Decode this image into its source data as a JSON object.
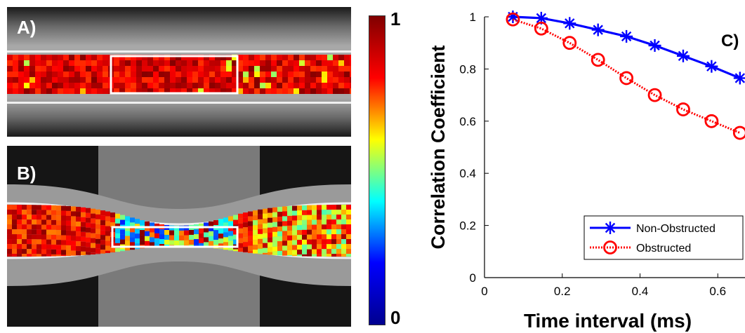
{
  "panels": {
    "a": {
      "label": "A)"
    },
    "b": {
      "label": "B)"
    },
    "c": {
      "label": "C)"
    }
  },
  "colorbar": {
    "max_label": "1",
    "min_label": "0",
    "colors": [
      "#00008f",
      "#0000ff",
      "#00ffff",
      "#ffff00",
      "#ff0000",
      "#800000"
    ]
  },
  "chart_data": {
    "type": "line",
    "title": "",
    "xlabel": "Time interval (ms)",
    "ylabel": "Correlation Coefficient",
    "xlim": [
      0,
      0.67
    ],
    "ylim": [
      0,
      1
    ],
    "xticks": [
      "0",
      "0.2",
      "0.4",
      "0.6"
    ],
    "yticks": [
      "0",
      "0.2",
      "0.4",
      "0.6",
      "0.8",
      "1"
    ],
    "x": [
      0.073,
      0.146,
      0.219,
      0.292,
      0.365,
      0.438,
      0.511,
      0.584,
      0.657
    ],
    "series": [
      {
        "name": "Non-Obstructed",
        "color": "#0000ff",
        "marker": "asterisk",
        "line": "solid",
        "values": [
          1.0,
          0.995,
          0.975,
          0.95,
          0.925,
          0.89,
          0.85,
          0.81,
          0.765
        ]
      },
      {
        "name": "Obstructed",
        "color": "#ff0000",
        "marker": "circle",
        "line": "dotted",
        "values": [
          0.99,
          0.955,
          0.9,
          0.835,
          0.765,
          0.7,
          0.645,
          0.6,
          0.555
        ]
      }
    ],
    "legend_position": "bottom-right",
    "grid": false
  }
}
